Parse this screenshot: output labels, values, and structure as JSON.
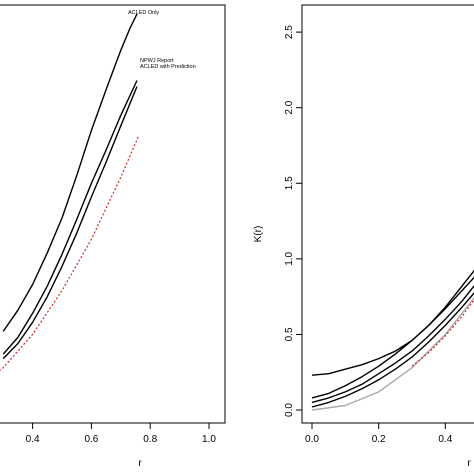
{
  "chart_data": [
    {
      "type": "line",
      "title": "",
      "xlabel": "r",
      "ylabel": "",
      "xlim": [
        0.0,
        1.0
      ],
      "ylim": [
        0.0,
        2.6
      ],
      "x_ticks": [
        "0.4",
        "0.6",
        "0.8",
        "1.0"
      ],
      "y_ticks": [],
      "annotations": [
        "ACLED Only",
        "NPWJ Report",
        "ACLED with Prediction"
      ],
      "series": [
        {
          "name": "ACLED Only",
          "style": "solid",
          "color": "#000000",
          "x": [
            0.3,
            0.35,
            0.4,
            0.45,
            0.5,
            0.55,
            0.6,
            0.65,
            0.7,
            0.73,
            0.75,
            0.755
          ],
          "y": [
            0.52,
            0.66,
            0.83,
            1.04,
            1.27,
            1.55,
            1.85,
            2.12,
            2.38,
            2.52,
            2.6,
            2.62
          ]
        },
        {
          "name": "NPWJ Report",
          "style": "solid",
          "color": "#000000",
          "x": [
            0.3,
            0.35,
            0.4,
            0.45,
            0.5,
            0.55,
            0.6,
            0.65,
            0.7,
            0.755
          ],
          "y": [
            0.37,
            0.48,
            0.64,
            0.82,
            1.03,
            1.26,
            1.5,
            1.72,
            1.95,
            2.18
          ]
        },
        {
          "name": "ACLED with Prediction",
          "style": "solid",
          "color": "#000000",
          "x": [
            0.3,
            0.35,
            0.4,
            0.45,
            0.5,
            0.55,
            0.6,
            0.65,
            0.7,
            0.755
          ],
          "y": [
            0.34,
            0.44,
            0.58,
            0.75,
            0.95,
            1.17,
            1.41,
            1.64,
            1.88,
            2.14
          ]
        },
        {
          "name": "",
          "style": "dashed",
          "color": "#d62728",
          "x": [
            0.2,
            0.3,
            0.4,
            0.5,
            0.6,
            0.7,
            0.76
          ],
          "y": [
            0.13,
            0.28,
            0.5,
            0.79,
            1.13,
            1.54,
            1.81
          ]
        }
      ]
    },
    {
      "type": "line",
      "title": "",
      "xlabel": "r",
      "ylabel": "K(r)",
      "xlim": [
        0.0,
        0.6
      ],
      "ylim": [
        0.0,
        2.6
      ],
      "x_ticks": [
        "0.0",
        "0.2",
        "0.4"
      ],
      "y_ticks": [
        "0.0",
        "0.5",
        "1.0",
        "1.5",
        "2.0",
        "2.5"
      ],
      "series": [
        {
          "name": "",
          "style": "solid",
          "color": "#000000",
          "x": [
            0.0,
            0.05,
            0.1,
            0.15,
            0.2,
            0.25,
            0.3,
            0.35,
            0.4,
            0.45,
            0.5,
            0.55,
            0.6
          ],
          "y": [
            0.23,
            0.24,
            0.27,
            0.3,
            0.34,
            0.39,
            0.46,
            0.56,
            0.68,
            0.82,
            0.96,
            1.1,
            1.28
          ]
        },
        {
          "name": "",
          "style": "solid",
          "color": "#000000",
          "x": [
            0.0,
            0.05,
            0.1,
            0.15,
            0.2,
            0.25,
            0.3,
            0.35,
            0.4,
            0.45,
            0.5,
            0.55,
            0.6
          ],
          "y": [
            0.08,
            0.11,
            0.16,
            0.22,
            0.29,
            0.37,
            0.46,
            0.56,
            0.67,
            0.79,
            0.91,
            1.04,
            1.17
          ]
        },
        {
          "name": "",
          "style": "solid",
          "color": "#000000",
          "x": [
            0.0,
            0.05,
            0.1,
            0.15,
            0.2,
            0.25,
            0.3,
            0.35,
            0.4,
            0.45,
            0.5,
            0.55,
            0.6
          ],
          "y": [
            0.05,
            0.08,
            0.12,
            0.17,
            0.24,
            0.31,
            0.39,
            0.49,
            0.6,
            0.72,
            0.86,
            1.0,
            1.14
          ]
        },
        {
          "name": "",
          "style": "solid",
          "color": "#000000",
          "x": [
            0.0,
            0.05,
            0.1,
            0.15,
            0.2,
            0.25,
            0.3,
            0.35,
            0.4,
            0.45,
            0.5,
            0.55,
            0.6
          ],
          "y": [
            0.02,
            0.05,
            0.09,
            0.14,
            0.2,
            0.27,
            0.35,
            0.45,
            0.56,
            0.68,
            0.81,
            0.95,
            1.1
          ]
        },
        {
          "name": "",
          "style": "solid",
          "color": "#aaaaaa",
          "x": [
            0.0,
            0.1,
            0.2,
            0.3,
            0.4,
            0.5,
            0.6
          ],
          "y": [
            0.0,
            0.03,
            0.12,
            0.28,
            0.5,
            0.78,
            1.13
          ]
        },
        {
          "name": "",
          "style": "dashed",
          "color": "#d62728",
          "x": [
            0.3,
            0.35,
            0.4,
            0.45,
            0.5,
            0.55,
            0.6
          ],
          "y": [
            0.29,
            0.38,
            0.49,
            0.62,
            0.77,
            0.93,
            1.1
          ]
        }
      ]
    }
  ]
}
